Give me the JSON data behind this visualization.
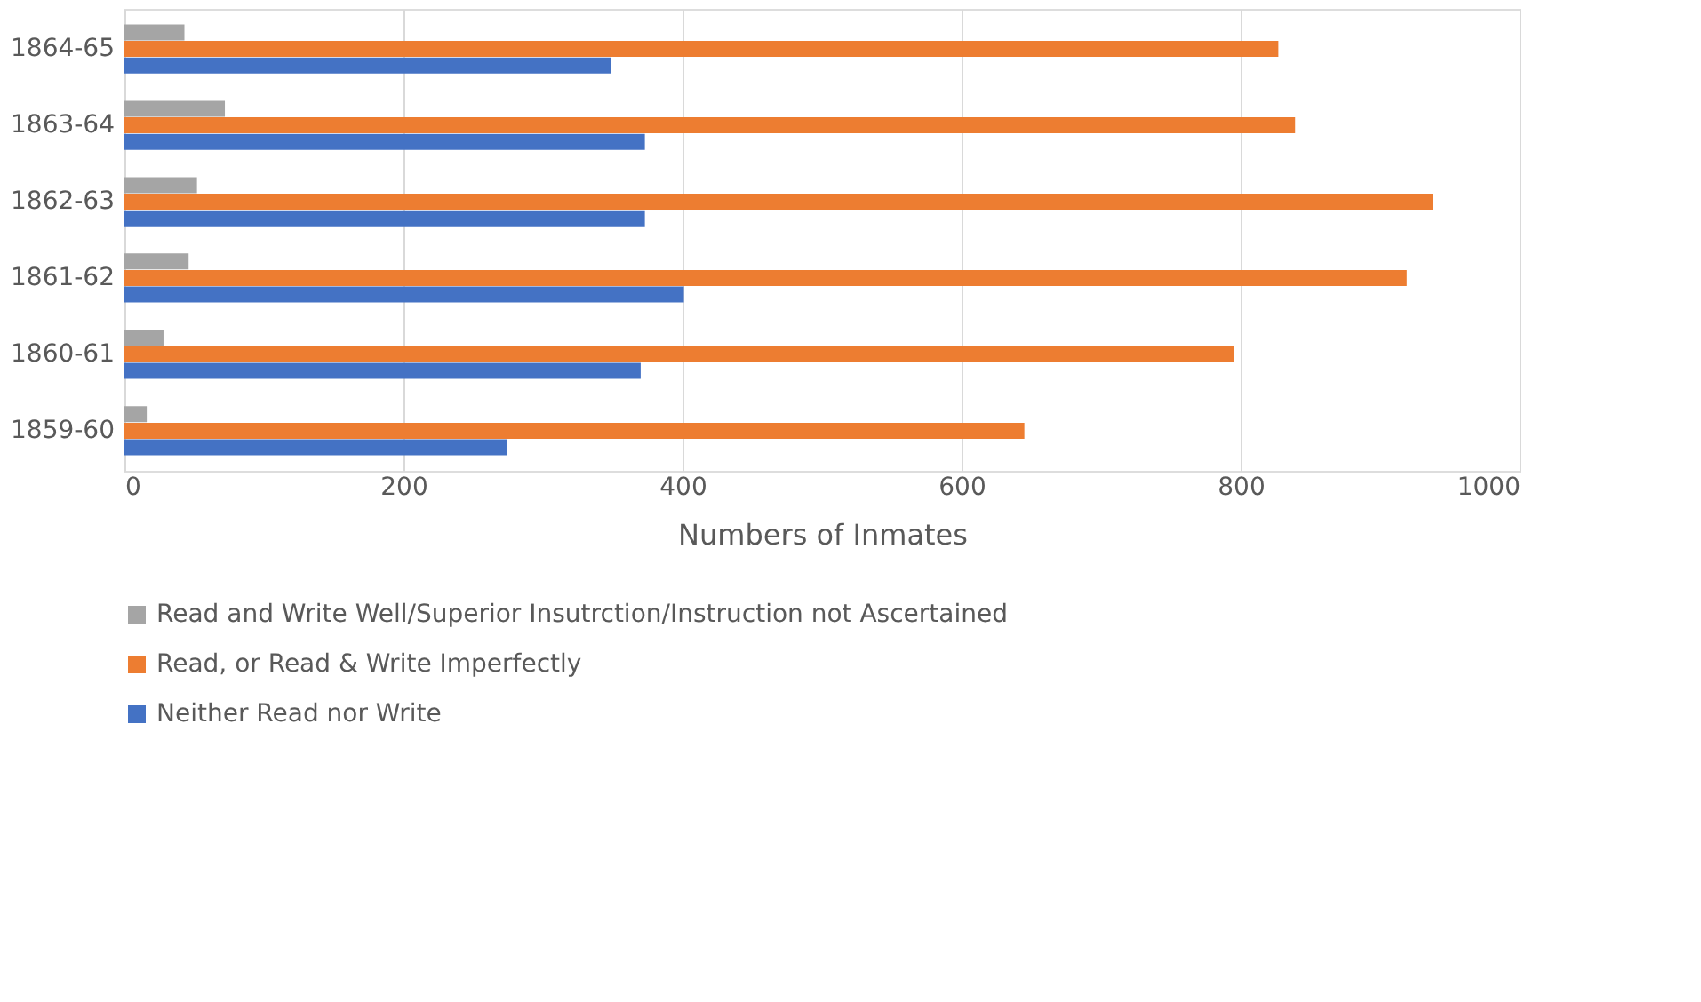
{
  "chart_data": {
    "type": "bar",
    "orientation": "horizontal",
    "xlabel": "Numbers of Inmates",
    "categories": [
      "1864-65",
      "1863-64",
      "1862-63",
      "1861-62",
      "1860-61",
      "1859-60"
    ],
    "series": [
      {
        "name": "Read and Write Well/Superior Insutrction/Instruction not Ascertained",
        "color": "#a5a5a5",
        "values": [
          43,
          72,
          52,
          46,
          28,
          16
        ]
      },
      {
        "name": "Read, or Read & Write Imperfectly",
        "color": "#ed7d31",
        "values": [
          827,
          839,
          938,
          919,
          795,
          645
        ]
      },
      {
        "name": "Neither Read nor Write",
        "color": "#4472c4",
        "values": [
          349,
          373,
          373,
          401,
          370,
          274
        ]
      }
    ],
    "xlim": [
      0,
      1000
    ],
    "xticks": [
      0,
      200,
      400,
      600,
      800,
      1000
    ],
    "grid": "x",
    "legend": "bottom"
  }
}
